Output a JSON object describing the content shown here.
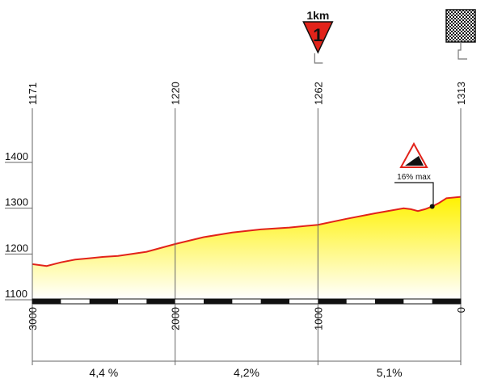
{
  "chart_data": {
    "type": "area",
    "title": "",
    "xlabel": "",
    "ylabel": "",
    "x_direction": "descending",
    "xlim": [
      3000,
      0
    ],
    "ylim": [
      1100,
      1400
    ],
    "y_ticks": [
      "1100",
      "1200",
      "1300",
      "1400"
    ],
    "x_ticks": [
      "3000",
      "2000",
      "1000",
      "0"
    ],
    "checkpoint_altitudes": [
      "1171",
      "1220",
      "1262",
      "1313"
    ],
    "segment_gradients": [
      "4,4 %",
      "4,2%",
      "5,1%"
    ],
    "profile": {
      "x": [
        3000,
        2900,
        2800,
        2700,
        2600,
        2500,
        2400,
        2200,
        2000,
        1800,
        1600,
        1400,
        1200,
        1000,
        800,
        600,
        400,
        350,
        300,
        250,
        200,
        150,
        100,
        0
      ],
      "y": [
        1176,
        1172,
        1180,
        1186,
        1189,
        1192,
        1194,
        1203,
        1220,
        1235,
        1245,
        1252,
        1256,
        1262,
        1275,
        1287,
        1298,
        1296,
        1292,
        1296,
        1302,
        1310,
        1320,
        1323
      ]
    },
    "fill_top_color": "#fff200",
    "fill_bottom_color": "#ffffff",
    "line_color": "#e2231a",
    "grid": false,
    "km_marker": {
      "label": "1km",
      "number": "1",
      "x": 1000,
      "color": "#e2231a"
    },
    "finish_flag": {
      "x": 0,
      "icon": "checkered-flag-icon"
    },
    "max_gradient": {
      "label": "16% max",
      "x": 200,
      "y": 1302,
      "icon": "steep-climb-icon"
    }
  }
}
